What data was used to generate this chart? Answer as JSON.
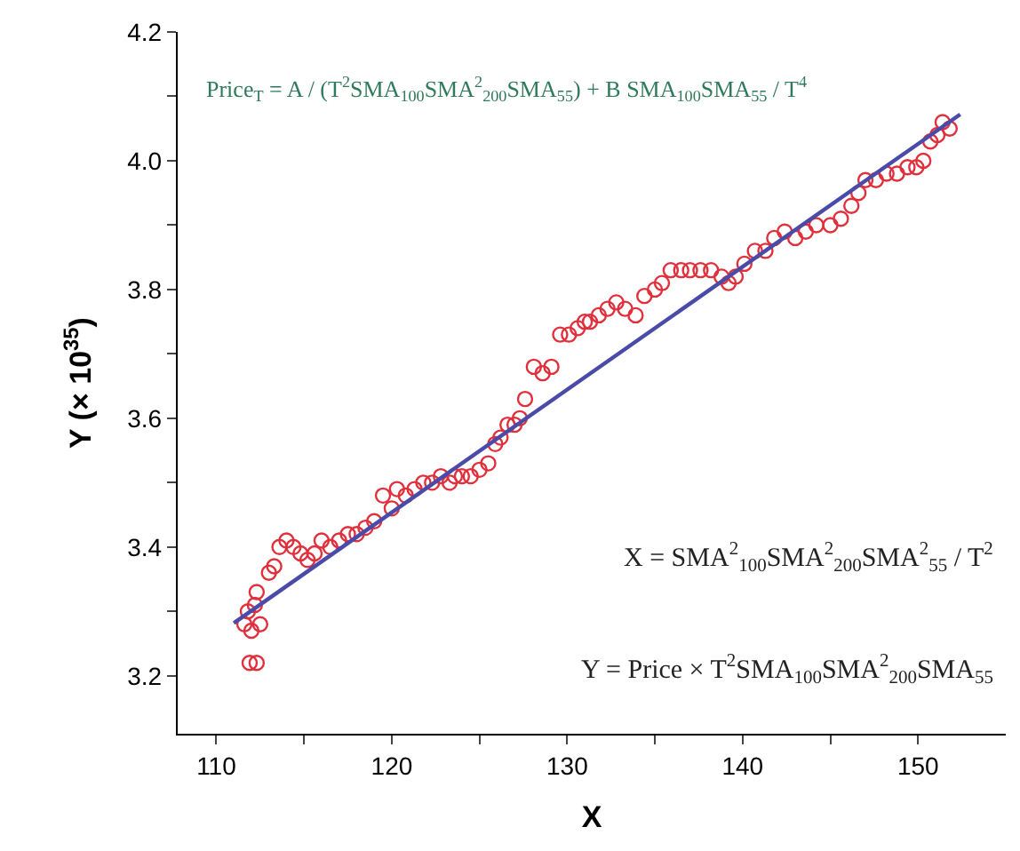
{
  "chart_data": {
    "type": "scatter",
    "xlabel": "X",
    "ylabel": "Y (× 10$^{35}$)",
    "xlim": [
      107.8,
      155
    ],
    "ylim": [
      3.11,
      4.2
    ],
    "xticks": [
      110,
      {
        "value": 115,
        "label": null
      },
      120,
      {
        "value": 125,
        "label": null
      },
      130,
      {
        "value": 135,
        "label": null
      },
      140,
      {
        "value": 145,
        "label": null
      },
      150
    ],
    "yticks": [
      3.2,
      {
        "value": 3.3,
        "label": null
      },
      3.4,
      {
        "value": 3.5,
        "label": null
      },
      3.6,
      {
        "value": 3.7,
        "label": null
      },
      3.8,
      {
        "value": 3.9,
        "label": null
      },
      {
        "value": 4.0,
        "label": "4.0"
      },
      {
        "value": 4.1,
        "label": null
      },
      4.2
    ],
    "grid": false,
    "legend": false,
    "series": [
      {
        "marker": "circle",
        "color": "#e0303c",
        "x": [
          111.9,
          112.3,
          111.6,
          111.8,
          112.0,
          112.2,
          112.5,
          112.3,
          113.0,
          113.3,
          113.6,
          114.0,
          114.4,
          114.8,
          115.2,
          115.6,
          116.0,
          116.5,
          117.0,
          117.5,
          118.0,
          118.5,
          119.0,
          119.5,
          120.0,
          120.3,
          120.8,
          121.3,
          121.8,
          122.3,
          122.8,
          123.3,
          123.6,
          124.0,
          124.5,
          125.0,
          125.5,
          125.9,
          126.2,
          126.6,
          127.0,
          127.3,
          127.6,
          128.1,
          128.6,
          129.1,
          129.6,
          130.1,
          130.6,
          131.0,
          131.3,
          131.8,
          132.3,
          132.8,
          133.3,
          133.9,
          134.4,
          135.0,
          135.4,
          135.9,
          136.5,
          137.0,
          137.6,
          138.2,
          138.8,
          139.2,
          139.6,
          140.1,
          140.7,
          141.3,
          141.8,
          142.4,
          143.0,
          143.6,
          144.2,
          145.0,
          145.6,
          146.2,
          146.6,
          147.0,
          147.6,
          148.2,
          148.8,
          149.4,
          149.9,
          150.3,
          150.7,
          151.1,
          151.4,
          151.8
        ],
        "values": [
          3.22,
          3.22,
          3.28,
          3.3,
          3.27,
          3.31,
          3.28,
          3.33,
          3.36,
          3.37,
          3.4,
          3.41,
          3.4,
          3.39,
          3.38,
          3.39,
          3.41,
          3.4,
          3.41,
          3.42,
          3.42,
          3.43,
          3.44,
          3.48,
          3.46,
          3.49,
          3.48,
          3.49,
          3.5,
          3.5,
          3.51,
          3.5,
          3.51,
          3.51,
          3.51,
          3.52,
          3.53,
          3.56,
          3.57,
          3.59,
          3.59,
          3.6,
          3.63,
          3.68,
          3.67,
          3.68,
          3.73,
          3.73,
          3.74,
          3.75,
          3.75,
          3.76,
          3.77,
          3.78,
          3.77,
          3.76,
          3.79,
          3.8,
          3.81,
          3.83,
          3.83,
          3.83,
          3.83,
          3.83,
          3.82,
          3.81,
          3.82,
          3.84,
          3.86,
          3.86,
          3.88,
          3.89,
          3.88,
          3.89,
          3.9,
          3.9,
          3.91,
          3.93,
          3.95,
          3.97,
          3.97,
          3.98,
          3.98,
          3.99,
          3.99,
          4.0,
          4.03,
          4.04,
          4.06,
          4.05
        ]
      },
      {
        "type": "line",
        "color": "#4a4aa8",
        "line_style": "solid",
        "x": [
          111.0,
          152.4
        ],
        "values": [
          3.282,
          4.072
        ]
      }
    ],
    "annotations": [
      "Price$_{T}$ = A / (T$^{2}$SMA$_{100}$SMA$^{2}$$_{200}$SMA$_{55}$) + B SMA$_{100}$SMA$_{55}$ / T$^{4}$",
      "X = SMA$^{2}$$_{100}$SMA$^{2}$$_{200}$SMA$^{2}$$_{55}$ / T$^{2}$",
      "Y = Price × T$^{2}$SMA$_{100}$SMA$^{2}$$_{200}$SMA$_{55}$"
    ]
  }
}
